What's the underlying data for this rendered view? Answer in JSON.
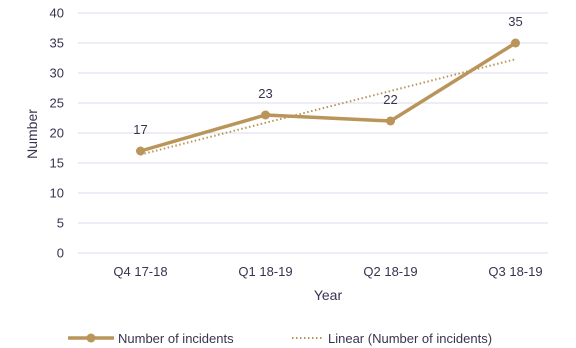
{
  "chart_data": {
    "type": "line",
    "xlabel": "Year",
    "ylabel": "Number",
    "ylim": [
      0,
      40
    ],
    "yticks": [
      "0",
      "5",
      "10",
      "15",
      "20",
      "25",
      "30",
      "35",
      "40"
    ],
    "categories": [
      "Q4 17-18",
      "Q1 18-19",
      "Q2 18-19",
      "Q3 18-19"
    ],
    "grid": true,
    "legend_position": "bottom",
    "series": [
      {
        "name": "Number of incidents",
        "values": [
          17,
          23,
          22,
          35
        ],
        "data_labels": [
          "17",
          "23",
          "22",
          "35"
        ],
        "color": "#b9955a",
        "style": "solid-with-markers"
      },
      {
        "name": "Linear (Number of incidents)",
        "trendline": true,
        "values": [
          16.4,
          21.7,
          27.0,
          32.3
        ],
        "color": "#b9955a",
        "style": "dotted"
      }
    ]
  },
  "colors": {
    "grid": "#dcdae8",
    "text": "#3a3350",
    "series": "#b9955a"
  }
}
